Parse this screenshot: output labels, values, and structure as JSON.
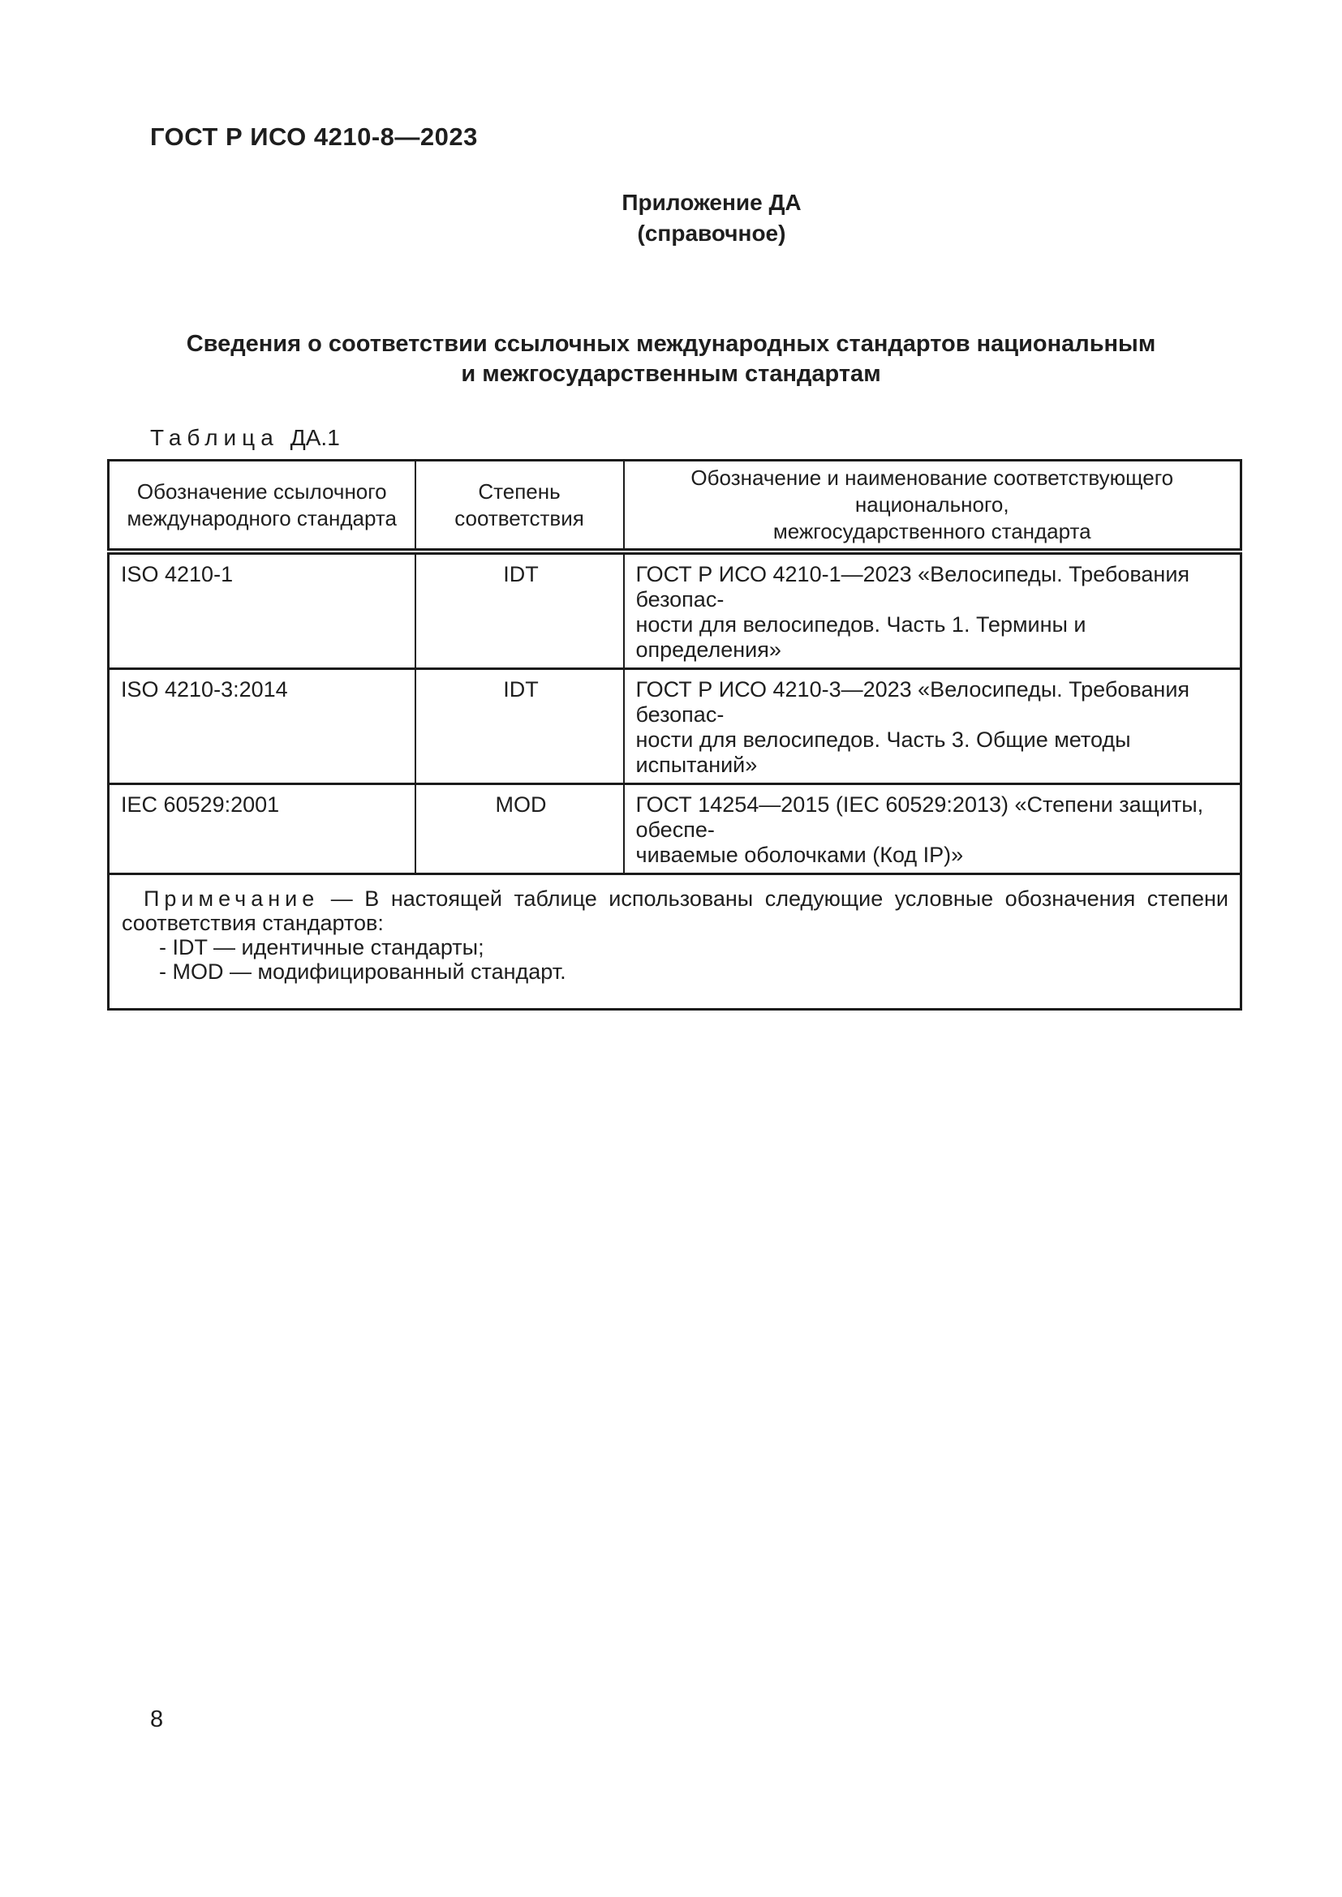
{
  "header": {
    "doc_code": "ГОСТ Р ИСО 4210-8—2023"
  },
  "annex": {
    "title": "Приложение ДА",
    "subtitle": "(справочное)"
  },
  "section_title": "Сведения о соответствии ссылочных международных стандартов национальным\nи межгосударственным стандартам",
  "table": {
    "caption_label": "Таблица",
    "caption_number": "ДА.1",
    "columns": [
      "Обозначение ссылочного\nмеждународного стандарта",
      "Степень соответствия",
      "Обозначение и наименование соответствующего национального,\nмежгосударственного стандарта"
    ],
    "rows": [
      {
        "reference": "ISO 4210-1",
        "degree": "IDT",
        "standard": "ГОСТ Р ИСО 4210-1—2023 «Велосипеды. Требования безопас-\nности для велосипедов. Часть 1. Термины и определения»"
      },
      {
        "reference": "ISO 4210-3:2014",
        "degree": "IDT",
        "standard": "ГОСТ Р ИСО 4210-3—2023 «Велосипеды. Требования безопас-\nности для велосипедов. Часть 3. Общие методы испытаний»"
      },
      {
        "reference": "IEC 60529:2001",
        "degree": "MOD",
        "standard": "ГОСТ 14254—2015 (IEC 60529:2013) «Степени защиты, обеспе-\nчиваемые оболочками (Код IP)»"
      }
    ],
    "note": {
      "label": "Примечание",
      "line1_rest": "— В настоящей таблице использованы следующие условные обозначения степени",
      "line2": "соответствия стандартов:",
      "items": [
        "- IDT — идентичные стандарты;",
        "- MOD — модифицированный стандарт."
      ]
    }
  },
  "page_number": "8",
  "colors": {
    "text": "#1e1e1e",
    "border": "#1b1b1b",
    "background": "#ffffff"
  }
}
